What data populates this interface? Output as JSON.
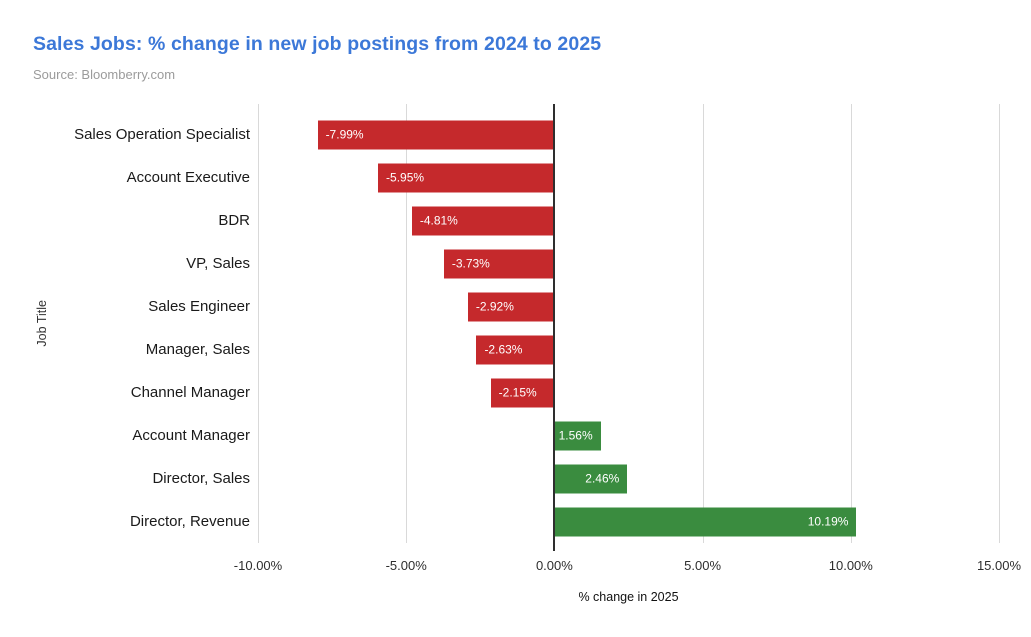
{
  "chart_data": {
    "type": "bar",
    "orientation": "horizontal",
    "title": "Sales Jobs: % change in new job postings from 2024 to 2025",
    "source": "Source: Bloomberry.com",
    "categories": [
      "Sales Operation Specialist",
      "Account Executive",
      "BDR",
      "VP, Sales",
      "Sales Engineer",
      "Manager, Sales",
      "Channel Manager",
      "Account Manager",
      "Director, Sales",
      "Director, Revenue"
    ],
    "values": [
      -7.99,
      -5.95,
      -4.81,
      -3.73,
      -2.92,
      -2.63,
      -2.15,
      1.56,
      2.46,
      10.19
    ],
    "bar_labels": [
      "-7.99%",
      "-5.95%",
      "-4.81%",
      "-3.73%",
      "-2.92%",
      "-2.63%",
      "-2.15%",
      "1.56%",
      "2.46%",
      "10.19%"
    ],
    "xlabel": "% change in 2025",
    "ylabel": "Job Title",
    "xlim": [
      -10,
      15
    ],
    "xtick_values": [
      -10,
      -5,
      0,
      5,
      10,
      15
    ],
    "xtick_labels": [
      "-10.00%",
      "-5.00%",
      "0.00%",
      "5.00%",
      "10.00%",
      "15.00%"
    ],
    "grid": true,
    "legend": "none",
    "colors": {
      "negative_bar": "#c5292c",
      "positive_bar": "#3a8c3f",
      "title": "#3c78d8",
      "source": "#9b9b9b",
      "gridline": "#d9d9d9",
      "zero_line": "#2e2e2e",
      "bar_label_text": "#ffffff"
    }
  }
}
